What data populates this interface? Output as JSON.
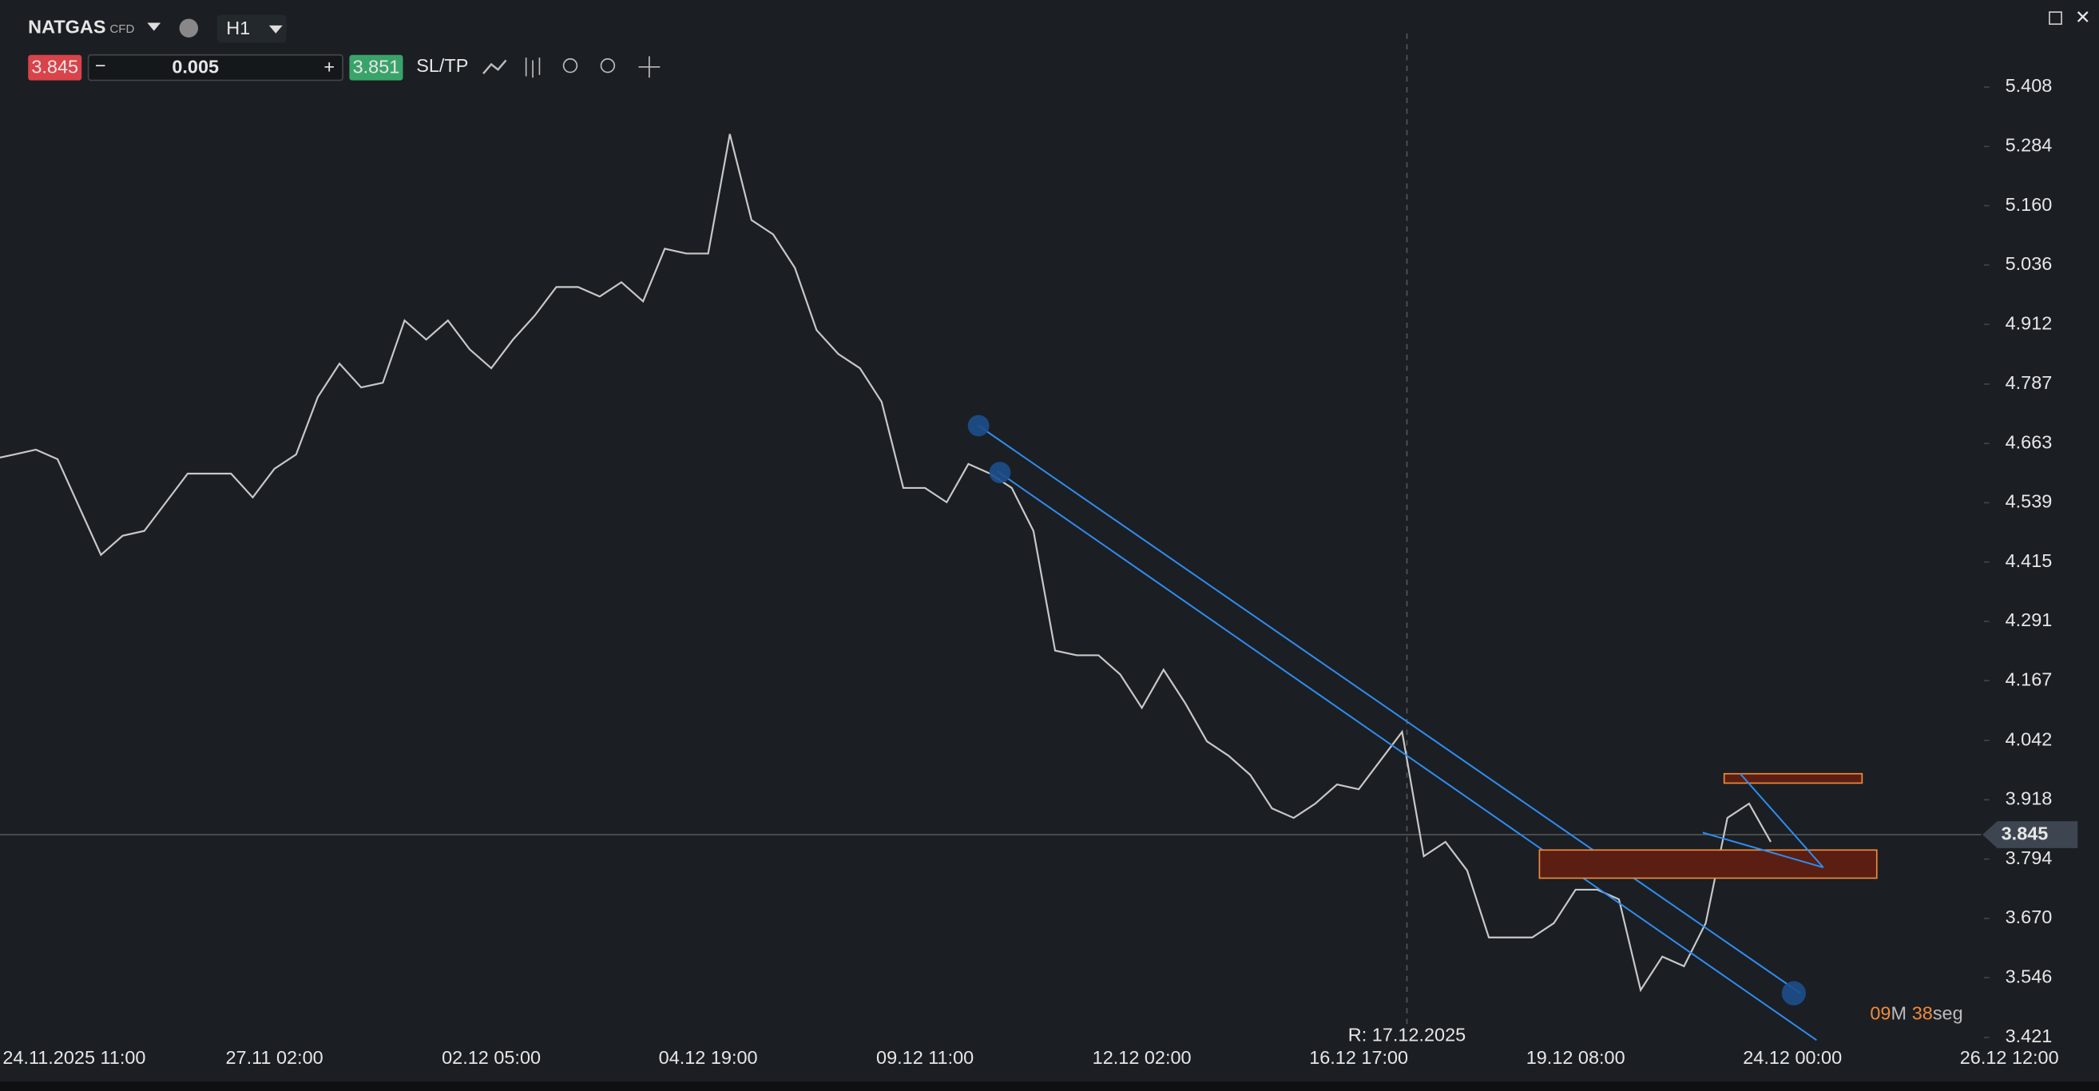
{
  "toolbar": {
    "symbol": "NATGAS",
    "instrument_type": "CFD",
    "timeframe": "H1",
    "sell_price": 3.845,
    "lot": 0.005,
    "buy_price": 3.851,
    "sl_tp": "SL/TP"
  },
  "timer": {
    "minutes": "09",
    "minutes_unit": "M",
    "seconds": "38",
    "seconds_unit": "seg"
  },
  "chart_data": {
    "type": "line",
    "color": "#c8c8c8",
    "categories": [
      null,
      null,
      null,
      "24.11.2025 11:00",
      null,
      null,
      null,
      null,
      null,
      null,
      null,
      null,
      null,
      "27.11 02:00",
      null,
      null,
      null,
      null,
      null,
      null,
      null,
      null,
      null,
      "02.12 05:00",
      null,
      null,
      null,
      null,
      null,
      null,
      null,
      null,
      null,
      "04.12 19:00",
      null,
      null,
      null,
      null,
      null,
      null,
      null,
      null,
      null,
      "09.12 11:00",
      null,
      null,
      null,
      null,
      null,
      null,
      null,
      null,
      null,
      "12.12 02:00",
      null,
      null,
      null,
      null,
      null,
      null,
      null,
      null,
      null,
      "16.12 17:00",
      null,
      null,
      null,
      null,
      null,
      null,
      null,
      null,
      null,
      "19.12 08:00",
      null,
      null,
      null,
      null,
      null,
      null,
      null,
      null,
      null,
      "24.12 00:00",
      null,
      null,
      null,
      null,
      null,
      null,
      null,
      null,
      null,
      "26.12 12:00"
    ],
    "values": [
      4.63,
      4.64,
      4.65,
      4.63,
      4.53,
      4.43,
      4.47,
      4.48,
      4.54,
      4.6,
      4.6,
      4.6,
      4.55,
      4.61,
      4.64,
      4.76,
      4.83,
      4.78,
      4.79,
      4.92,
      4.88,
      4.92,
      4.86,
      4.82,
      4.88,
      4.93,
      4.99,
      4.99,
      4.97,
      5.0,
      4.96,
      5.07,
      5.06,
      5.06,
      5.31,
      5.13,
      5.1,
      5.03,
      4.9,
      4.85,
      4.82,
      4.75,
      4.57,
      4.57,
      4.54,
      4.62,
      4.6,
      4.57,
      4.48,
      4.23,
      4.22,
      4.22,
      4.18,
      4.11,
      4.19,
      4.12,
      4.04,
      4.01,
      3.97,
      3.9,
      3.88,
      3.91,
      3.95,
      3.94,
      4.0,
      4.06,
      3.8,
      3.83,
      3.77,
      3.63,
      3.63,
      3.63,
      3.66,
      3.73,
      3.73,
      3.71,
      3.52,
      3.59,
      3.57,
      3.66,
      3.88,
      3.91,
      3.83,
      null,
      null,
      null,
      null,
      null,
      null,
      null,
      null,
      null,
      null,
      null
    ],
    "ylim": [
      3.39,
      5.51
    ],
    "yticks": [
      5.408,
      5.284,
      {
        "value": 5.16,
        "label": "5.160"
      },
      5.036,
      4.912,
      4.787,
      4.663,
      4.539,
      4.415,
      4.291,
      4.167,
      4.042,
      3.918,
      3.794,
      {
        "value": 3.67,
        "label": "3.670"
      },
      3.546,
      3.421
    ],
    "current_price": 3.845,
    "annotation": "R: 17.12.2025"
  }
}
